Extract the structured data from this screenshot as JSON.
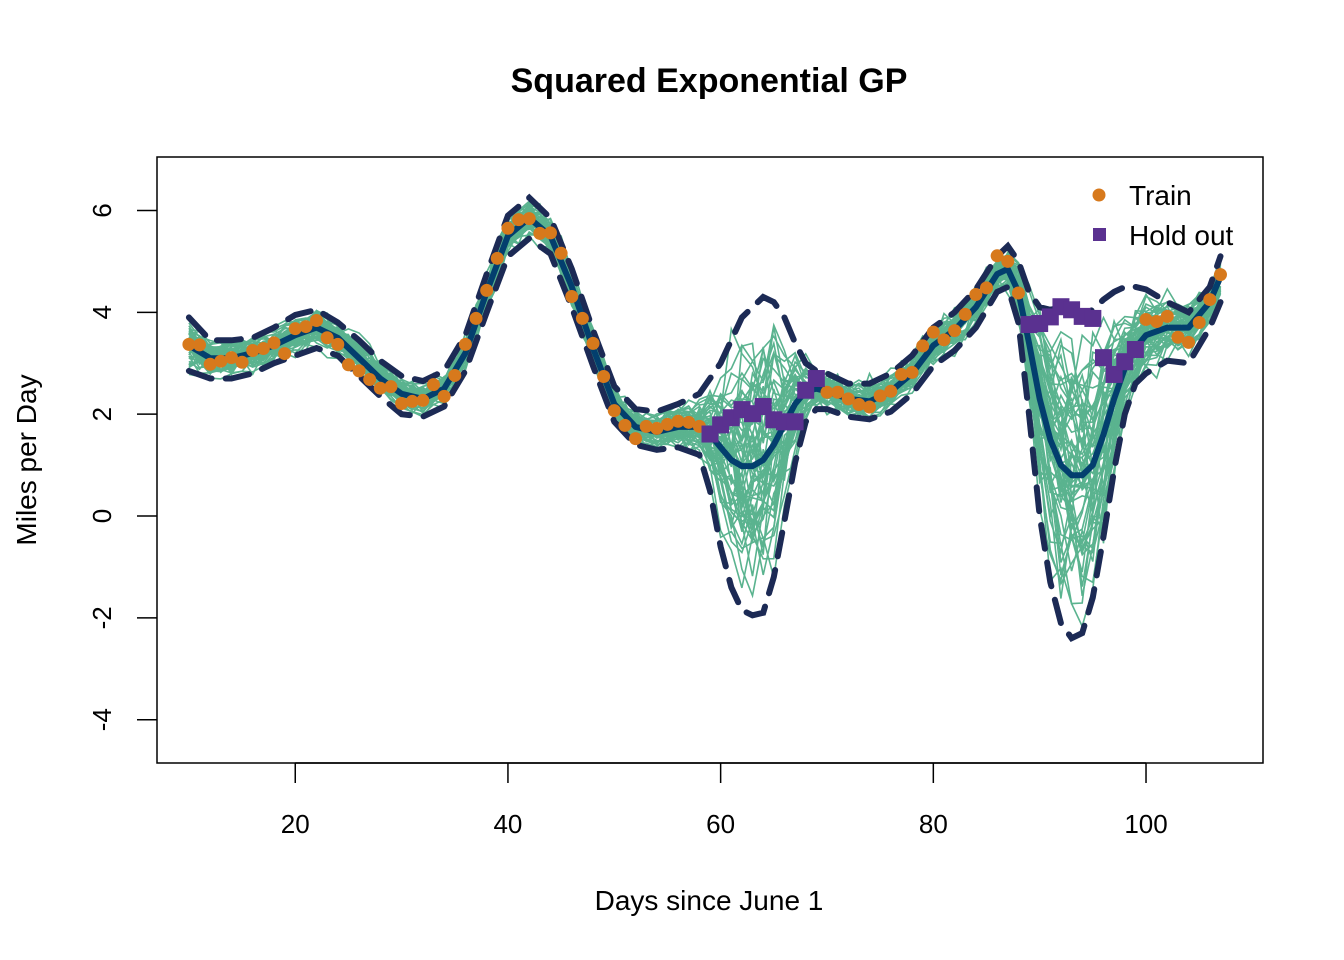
{
  "chart_data": {
    "type": "line",
    "title": "Squared Exponential GP",
    "xlabel": "Days since June 1",
    "ylabel": "Miles per Day",
    "xlim": [
      7,
      111
    ],
    "ylim": [
      -4.85,
      7.05
    ],
    "x_ticks": [
      20,
      40,
      60,
      80,
      100
    ],
    "x_tick_labels": [
      "20",
      "40",
      "60",
      "80",
      "100"
    ],
    "y_ticks": [
      -4,
      -2,
      0,
      2,
      4,
      6
    ],
    "y_tick_labels": [
      "-4",
      "-2",
      "0",
      "2",
      "4",
      "6"
    ],
    "grid": false,
    "legend": {
      "position": "top-right",
      "entries": [
        {
          "label": "Train",
          "marker": "circle",
          "color": "#d7791c"
        },
        {
          "label": "Hold out",
          "marker": "square",
          "color": "#5a3190"
        }
      ]
    },
    "colors": {
      "samples": "#5ab38f",
      "mean": "#033f6e",
      "band": "#1c2a55",
      "train": "#d7791c",
      "holdout": "#5a3190"
    },
    "posterior_sample_count": 60,
    "train": {
      "x": [
        10,
        11,
        12,
        13,
        14,
        15,
        16,
        17,
        18,
        19,
        20,
        21,
        22,
        23,
        24,
        25,
        26,
        27,
        28,
        29,
        30,
        31,
        32,
        33,
        34,
        35,
        36,
        37,
        38,
        39,
        40,
        41,
        42,
        43,
        44,
        45,
        46,
        47,
        48,
        49,
        50,
        51,
        52,
        53,
        54,
        55,
        56,
        57,
        58,
        70,
        71,
        72,
        73,
        74,
        75,
        76,
        77,
        78,
        79,
        80,
        81,
        82,
        83,
        84,
        85,
        86,
        87,
        88,
        100,
        101,
        102,
        103,
        104,
        105,
        106,
        107
      ],
      "y": [
        3.37,
        3.36,
        2.98,
        3.04,
        3.11,
        3.02,
        3.25,
        3.29,
        3.4,
        3.19,
        3.68,
        3.72,
        3.84,
        3.5,
        3.37,
        2.97,
        2.85,
        2.68,
        2.51,
        2.54,
        2.21,
        2.25,
        2.27,
        2.58,
        2.35,
        2.76,
        3.37,
        3.88,
        4.43,
        5.06,
        5.65,
        5.82,
        5.84,
        5.55,
        5.56,
        5.16,
        4.31,
        3.88,
        3.39,
        2.74,
        2.07,
        1.78,
        1.52,
        1.76,
        1.72,
        1.8,
        1.86,
        1.84,
        1.76,
        2.43,
        2.43,
        2.3,
        2.19,
        2.14,
        2.36,
        2.45,
        2.78,
        2.82,
        3.34,
        3.61,
        3.46,
        3.64,
        3.96,
        4.35,
        4.48,
        5.11,
        5.0,
        4.38,
        3.86,
        3.82,
        3.92,
        3.51,
        3.41,
        3.8,
        4.25,
        4.74
      ]
    },
    "holdout": {
      "x": [
        59,
        60,
        61,
        62,
        63,
        64,
        65,
        66,
        67,
        68,
        69,
        89,
        90,
        91,
        92,
        93,
        94,
        95,
        96,
        97,
        98,
        99
      ],
      "y": [
        1.61,
        1.79,
        1.93,
        2.09,
        2.01,
        2.15,
        1.89,
        1.85,
        1.85,
        2.47,
        2.7,
        3.76,
        3.78,
        3.91,
        4.11,
        4.05,
        3.92,
        3.88,
        3.11,
        2.78,
        3.03,
        3.27
      ]
    },
    "mean": {
      "x": [
        10,
        12,
        14,
        16,
        18,
        20,
        22,
        24,
        26,
        28,
        30,
        32,
        34,
        36,
        38,
        40,
        42,
        44,
        46,
        48,
        50,
        52,
        54,
        56,
        58,
        59,
        60,
        61,
        62,
        63,
        64,
        65,
        66,
        67,
        68,
        69,
        70,
        72,
        74,
        76,
        78,
        80,
        82,
        84,
        86,
        87,
        88,
        89,
        90,
        91,
        92,
        93,
        94,
        95,
        96,
        97,
        98,
        99,
        100,
        102,
        104,
        106,
        107
      ],
      "y": [
        3.35,
        3.1,
        3.1,
        3.2,
        3.35,
        3.55,
        3.7,
        3.5,
        3.1,
        2.7,
        2.4,
        2.3,
        2.5,
        3.2,
        4.4,
        5.5,
        5.85,
        5.5,
        4.5,
        3.3,
        2.2,
        1.75,
        1.65,
        1.75,
        1.75,
        1.6,
        1.35,
        1.1,
        0.98,
        0.98,
        1.1,
        1.4,
        1.8,
        2.2,
        2.45,
        2.5,
        2.45,
        2.3,
        2.25,
        2.45,
        2.8,
        3.35,
        3.65,
        4.1,
        4.75,
        4.85,
        4.4,
        3.4,
        2.3,
        1.5,
        1.0,
        0.8,
        0.8,
        1.0,
        1.6,
        2.3,
        2.9,
        3.3,
        3.55,
        3.7,
        3.7,
        4.2,
        4.7
      ]
    },
    "band_upper": {
      "x": [
        10,
        12,
        14,
        16,
        18,
        20,
        22,
        24,
        26,
        28,
        30,
        32,
        34,
        36,
        38,
        40,
        42,
        44,
        46,
        48,
        50,
        52,
        54,
        56,
        58,
        60,
        62,
        64,
        65,
        66,
        67,
        68,
        69,
        70,
        72,
        74,
        76,
        78,
        80,
        82,
        84,
        86,
        87,
        88,
        89,
        90,
        91,
        92,
        93,
        94,
        95,
        96,
        97,
        98,
        99,
        100,
        102,
        104,
        106,
        107
      ],
      "y": [
        3.9,
        3.45,
        3.45,
        3.5,
        3.7,
        3.95,
        4.05,
        3.8,
        3.45,
        3.05,
        2.75,
        2.65,
        2.85,
        3.55,
        4.75,
        5.9,
        6.25,
        5.85,
        4.85,
        3.65,
        2.55,
        2.1,
        2.05,
        2.2,
        2.4,
        3.0,
        3.9,
        4.3,
        4.2,
        3.9,
        3.4,
        3.0,
        2.85,
        2.8,
        2.6,
        2.6,
        2.8,
        3.15,
        3.7,
        4.0,
        4.45,
        5.1,
        5.3,
        5.0,
        4.4,
        4.1,
        4.05,
        4.1,
        4.0,
        3.95,
        4.05,
        4.25,
        4.4,
        4.5,
        4.5,
        4.45,
        4.2,
        4.0,
        4.5,
        5.1
      ]
    },
    "band_lower": {
      "x": [
        10,
        12,
        14,
        16,
        18,
        20,
        22,
        24,
        26,
        28,
        30,
        32,
        34,
        36,
        38,
        40,
        42,
        44,
        46,
        48,
        50,
        52,
        54,
        56,
        58,
        59,
        60,
        61,
        62,
        63,
        64,
        65,
        66,
        67,
        68,
        69,
        70,
        72,
        74,
        76,
        78,
        80,
        82,
        84,
        86,
        87,
        88,
        89,
        90,
        91,
        92,
        93,
        94,
        95,
        96,
        97,
        98,
        99,
        100,
        102,
        104,
        106,
        107
      ],
      "y": [
        2.85,
        2.7,
        2.7,
        2.8,
        3.0,
        3.15,
        3.3,
        3.15,
        2.75,
        2.35,
        2.0,
        1.95,
        2.15,
        2.85,
        4.0,
        5.1,
        5.45,
        5.15,
        4.1,
        2.95,
        1.85,
        1.4,
        1.3,
        1.35,
        1.2,
        0.5,
        -0.6,
        -1.4,
        -1.85,
        -1.95,
        -1.9,
        -1.2,
        -0.1,
        1.05,
        1.85,
        2.1,
        2.1,
        1.95,
        1.9,
        2.05,
        2.4,
        2.95,
        3.25,
        3.7,
        4.4,
        4.5,
        3.8,
        2.0,
        0.0,
        -1.3,
        -2.1,
        -2.4,
        -2.3,
        -1.6,
        -0.4,
        0.9,
        2.0,
        2.6,
        2.8,
        3.05,
        3.0,
        3.7,
        4.2
      ]
    }
  }
}
